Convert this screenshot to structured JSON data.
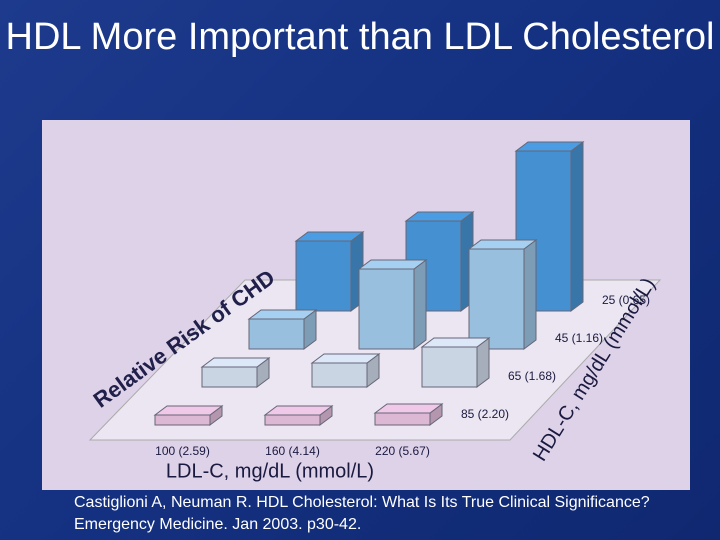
{
  "title": "HDL More Important than LDL Cholesterol",
  "citation": "Castiglioni A, Neuman R. HDL Cholesterol: What Is Its True Clinical Significance? Emergency Medicine. Jan 2003. p30-42.",
  "chart_data": {
    "type": "bar3d",
    "y_label": "Relative Risk of CHD",
    "x_label": "LDL-C, mg/dL (mmol/L)",
    "z_label": "HDL-C, mg/dL (mmol/L)",
    "categories": [
      "100 (2.59)",
      "160 (4.14)",
      "220 (5.67)"
    ],
    "series": [
      {
        "name": "25 (0.65)",
        "color": "#4a9de3",
        "values": [
          3.5,
          4.5,
          8.0
        ]
      },
      {
        "name": "45 (1.16)",
        "color": "#a6d0f2",
        "values": [
          1.5,
          4.0,
          5.0
        ]
      },
      {
        "name": "65 (1.68)",
        "color": "#dce8f8",
        "values": [
          1.0,
          1.2,
          2.0
        ]
      },
      {
        "name": "85 (2.20)",
        "color": "#f0c8e8",
        "values": [
          0.5,
          0.5,
          0.6
        ]
      }
    ]
  }
}
